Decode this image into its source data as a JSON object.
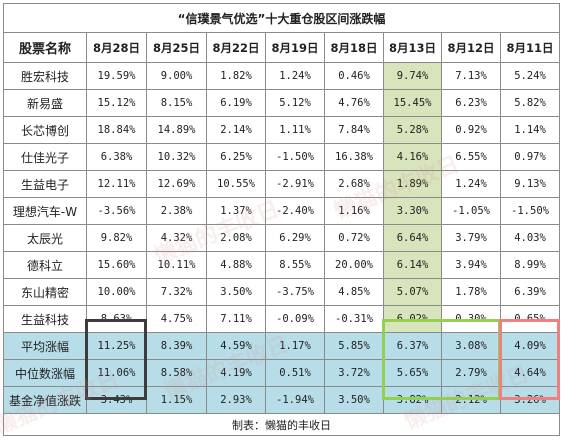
{
  "title": "“信璞景气优选”十大重仓股区间涨跌幅",
  "header": {
    "name_col": "股票名称",
    "dates": [
      "8月28日",
      "8月25日",
      "8月22日",
      "8月19日",
      "8月18日",
      "8月13日",
      "8月12日",
      "8月11日"
    ]
  },
  "rows": [
    {
      "name": "胜宏科技",
      "values": [
        "19.59%",
        "9.00%",
        "1.82%",
        "1.24%",
        "0.46%",
        "9.74%",
        "7.13%",
        "5.24%"
      ]
    },
    {
      "name": "新易盛",
      "values": [
        "15.12%",
        "8.15%",
        "6.19%",
        "5.12%",
        "4.76%",
        "15.45%",
        "6.23%",
        "5.82%"
      ]
    },
    {
      "name": "长芯博创",
      "values": [
        "18.84%",
        "14.89%",
        "2.14%",
        "1.11%",
        "7.84%",
        "5.28%",
        "0.92%",
        "1.14%"
      ]
    },
    {
      "name": "仕佳光子",
      "values": [
        "6.38%",
        "10.32%",
        "6.25%",
        "-1.50%",
        "16.38%",
        "4.16%",
        "6.55%",
        "0.97%"
      ]
    },
    {
      "name": "生益电子",
      "values": [
        "12.11%",
        "12.69%",
        "10.55%",
        "-2.91%",
        "2.68%",
        "1.89%",
        "1.24%",
        "9.13%"
      ]
    },
    {
      "name": "理想汽车-W",
      "values": [
        "-3.56%",
        "2.38%",
        "1.37%",
        "-2.40%",
        "1.16%",
        "3.30%",
        "-1.05%",
        "-1.50%"
      ]
    },
    {
      "name": "太辰光",
      "values": [
        "9.82%",
        "4.32%",
        "2.08%",
        "6.29%",
        "0.72%",
        "6.64%",
        "3.79%",
        "4.03%"
      ]
    },
    {
      "name": "德科立",
      "values": [
        "15.60%",
        "10.11%",
        "4.88%",
        "8.55%",
        "20.00%",
        "6.14%",
        "3.94%",
        "8.99%"
      ]
    },
    {
      "name": "东山精密",
      "values": [
        "10.00%",
        "7.32%",
        "3.50%",
        "-3.75%",
        "4.85%",
        "5.07%",
        "1.78%",
        "6.39%"
      ]
    },
    {
      "name": "生益科技",
      "values": [
        "8.63%",
        "4.75%",
        "7.11%",
        "-0.09%",
        "-0.31%",
        "6.02%",
        "0.30%",
        "0.65%"
      ]
    }
  ],
  "stats": [
    {
      "name": "平均涨幅",
      "values": [
        "11.25%",
        "8.39%",
        "4.59%",
        "1.17%",
        "5.85%",
        "6.37%",
        "3.08%",
        "4.09%"
      ]
    },
    {
      "name": "中位数涨幅",
      "values": [
        "11.06%",
        "8.58%",
        "4.19%",
        "0.51%",
        "3.72%",
        "5.65%",
        "2.79%",
        "4.64%"
      ]
    },
    {
      "name": "基金净值涨跌",
      "values": [
        "3.43%",
        "1.15%",
        "2.93%",
        "-1.94%",
        "3.50%",
        "3.82%",
        "2.12%",
        "3.26%"
      ]
    }
  ],
  "footer": "制表：懒猫的丰收日",
  "watermark": "懒猫的丰收日",
  "colors": {
    "stats_bg": "#b7dde8",
    "green_col_bg": "#d8e4bc",
    "highlight_dark": "#3c3c3c",
    "highlight_green": "#92d050",
    "highlight_red": "#f08080"
  },
  "chart_data": {
    "type": "table",
    "title": "“信璞景气优选”十大重仓股区间涨跌幅",
    "columns": [
      "股票名称",
      "8月28日",
      "8月25日",
      "8月22日",
      "8月19日",
      "8月18日",
      "8月13日",
      "8月12日",
      "8月11日"
    ],
    "rows": [
      [
        "胜宏科技",
        "19.59%",
        "9.00%",
        "1.82%",
        "1.24%",
        "0.46%",
        "9.74%",
        "7.13%",
        "5.24%"
      ],
      [
        "新易盛",
        "15.12%",
        "8.15%",
        "6.19%",
        "5.12%",
        "4.76%",
        "15.45%",
        "6.23%",
        "5.82%"
      ],
      [
        "长芯博创",
        "18.84%",
        "14.89%",
        "2.14%",
        "1.11%",
        "7.84%",
        "5.28%",
        "0.92%",
        "1.14%"
      ],
      [
        "仕佳光子",
        "6.38%",
        "10.32%",
        "6.25%",
        "-1.50%",
        "16.38%",
        "4.16%",
        "6.55%",
        "0.97%"
      ],
      [
        "生益电子",
        "12.11%",
        "12.69%",
        "10.55%",
        "-2.91%",
        "2.68%",
        "1.89%",
        "1.24%",
        "9.13%"
      ],
      [
        "理想汽车-W",
        "-3.56%",
        "2.38%",
        "1.37%",
        "-2.40%",
        "1.16%",
        "3.30%",
        "-1.05%",
        "-1.50%"
      ],
      [
        "太辰光",
        "9.82%",
        "4.32%",
        "2.08%",
        "6.29%",
        "0.72%",
        "6.64%",
        "3.79%",
        "4.03%"
      ],
      [
        "德科立",
        "15.60%",
        "10.11%",
        "4.88%",
        "8.55%",
        "20.00%",
        "6.14%",
        "3.94%",
        "8.99%"
      ],
      [
        "东山精密",
        "10.00%",
        "7.32%",
        "3.50%",
        "-3.75%",
        "4.85%",
        "5.07%",
        "1.78%",
        "6.39%"
      ],
      [
        "生益科技",
        "8.63%",
        "4.75%",
        "7.11%",
        "-0.09%",
        "-0.31%",
        "6.02%",
        "0.30%",
        "0.65%"
      ],
      [
        "平均涨幅",
        "11.25%",
        "8.39%",
        "4.59%",
        "1.17%",
        "5.85%",
        "6.37%",
        "3.08%",
        "4.09%"
      ],
      [
        "中位数涨幅",
        "11.06%",
        "8.58%",
        "4.19%",
        "0.51%",
        "3.72%",
        "5.65%",
        "2.79%",
        "4.64%"
      ],
      [
        "基金净值涨跌",
        "3.43%",
        "1.15%",
        "2.93%",
        "-1.94%",
        "3.50%",
        "3.82%",
        "2.12%",
        "3.26%"
      ]
    ]
  }
}
